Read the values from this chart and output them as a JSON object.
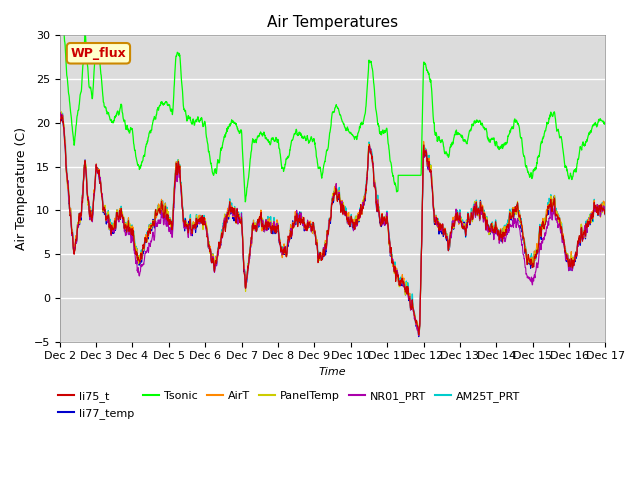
{
  "title": "Air Temperatures",
  "xlabel": "Time",
  "ylabel": "Air Temperature (C)",
  "ylim": [
    -5,
    30
  ],
  "xlim": [
    0,
    15
  ],
  "xtick_labels": [
    "Dec 2",
    "Dec 3",
    "Dec 4",
    "Dec 5",
    "Dec 6",
    "Dec 7",
    "Dec 8",
    "Dec 9",
    "Dec 10",
    "Dec 11",
    "Dec 12",
    "Dec 13",
    "Dec 14",
    "Dec 15",
    "Dec 16",
    "Dec 17"
  ],
  "bg_color": "#dcdcdc",
  "series_colors": {
    "li75_t": "#cc0000",
    "li77_temp": "#0000cc",
    "Tsonic": "#00ff00",
    "AirT": "#ff8800",
    "PanelTemp": "#cccc00",
    "NR01_PRT": "#aa00aa",
    "AM25T_PRT": "#00cccc"
  },
  "annotation_text": "WP_flux",
  "annotation_color": "#cc0000",
  "annotation_bg": "#ffffcc",
  "annotation_border": "#cc8800"
}
